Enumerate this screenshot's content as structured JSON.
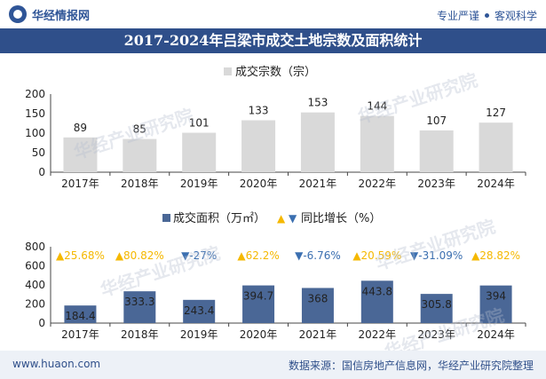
{
  "header": {
    "brand_name": "华经情报网",
    "tagline_left": "专业严谨",
    "tagline_right": "客观科学"
  },
  "title": "2017-2024年吕梁市成交土地宗数及面积统计",
  "footer": {
    "url": "www.huaon.com",
    "source": "数据来源：国信房地产信息网，华经产业研究院整理"
  },
  "watermark": "华经产业研究院",
  "colors": {
    "bar_count": "#d9d9d9",
    "bar_area": "#4a6796",
    "up": "#f5b800",
    "down": "#3b6fb0",
    "title_bg": "#2f4f8a"
  },
  "chart_data": [
    {
      "type": "bar",
      "legend": "成交宗数（宗）",
      "categories": [
        "2017年",
        "2018年",
        "2019年",
        "2020年",
        "2021年",
        "2022年",
        "2023年",
        "2024年"
      ],
      "values": [
        89,
        85,
        101,
        133,
        153,
        144,
        107,
        127
      ],
      "ylim": [
        0,
        200
      ],
      "yticks": [
        0,
        50,
        100,
        150,
        200
      ]
    },
    {
      "type": "bar",
      "legend_bar": "成交面积（万㎡）",
      "legend_growth": "同比增长（%）",
      "categories": [
        "2017年",
        "2018年",
        "2019年",
        "2020年",
        "2021年",
        "2022年",
        "2023年",
        "2024年"
      ],
      "values": [
        184.4,
        333.3,
        243.4,
        394.7,
        368,
        443.8,
        305.8,
        394
      ],
      "growth": [
        "25.68%",
        "80.82%",
        "-27%",
        "62.2%",
        "-6.76%",
        "20.59%",
        "-31.09%",
        "28.82%"
      ],
      "growth_dir": [
        "up",
        "up",
        "down",
        "up",
        "down",
        "up",
        "down",
        "up"
      ],
      "ylim": [
        0,
        800
      ],
      "yticks": [
        0,
        200,
        400,
        600,
        800
      ]
    }
  ]
}
